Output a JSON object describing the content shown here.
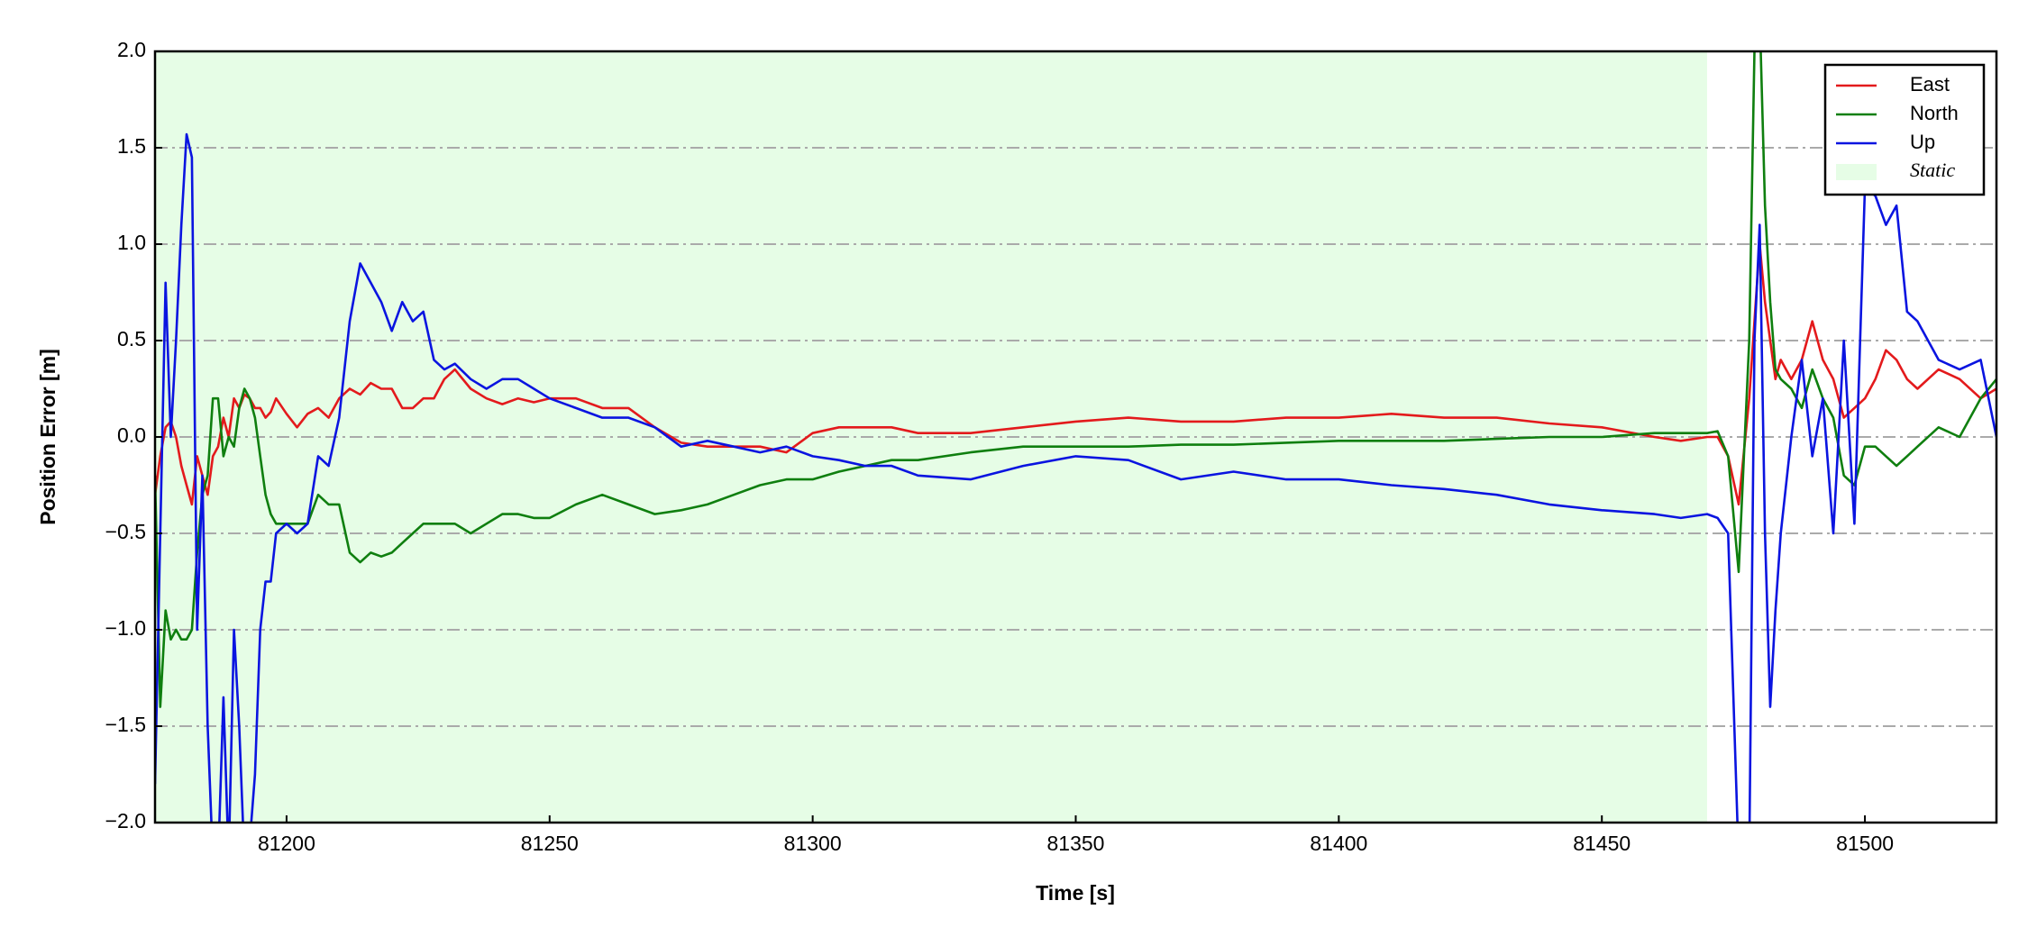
{
  "chart_data": {
    "type": "line",
    "xlabel": "Time [s]",
    "ylabel": "Position Error [m]",
    "xlim": [
      81175,
      81525
    ],
    "ylim": [
      -2.0,
      2.0
    ],
    "xticks": [
      81200,
      81250,
      81300,
      81350,
      81400,
      81450,
      81500
    ],
    "yticks": [
      {
        "value": -2.0,
        "label": "−2.0"
      },
      {
        "value": -1.5,
        "label": "−1.5"
      },
      {
        "value": -1.0,
        "label": "−1.0"
      },
      {
        "value": -0.5,
        "label": "−0.5"
      },
      {
        "value": 0.0,
        "label": "0.0"
      },
      {
        "value": 0.5,
        "label": "0.5"
      },
      {
        "value": 1.0,
        "label": "1.0"
      },
      {
        "value": 1.5,
        "label": "1.5"
      },
      {
        "value": 2.0,
        "label": "2.0"
      }
    ],
    "grid": true,
    "legend": "upper right",
    "static_span": {
      "name": "Static",
      "x": [
        81175,
        81470
      ],
      "color": "#e6fde6"
    },
    "x": [
      81175,
      81176,
      81177,
      81178,
      81179,
      81180,
      81181,
      81182,
      81183,
      81184,
      81185,
      81186,
      81187,
      81188,
      81189,
      81190,
      81191,
      81192,
      81193,
      81194,
      81195,
      81196,
      81197,
      81198,
      81200,
      81202,
      81204,
      81206,
      81208,
      81210,
      81212,
      81214,
      81216,
      81218,
      81220,
      81222,
      81224,
      81226,
      81228,
      81230,
      81232,
      81235,
      81238,
      81241,
      81244,
      81247,
      81250,
      81255,
      81260,
      81265,
      81270,
      81275,
      81280,
      81285,
      81290,
      81295,
      81300,
      81305,
      81310,
      81315,
      81320,
      81330,
      81340,
      81350,
      81360,
      81370,
      81380,
      81390,
      81400,
      81410,
      81420,
      81430,
      81440,
      81450,
      81460,
      81465,
      81470,
      81472,
      81474,
      81476,
      81478,
      81479,
      81480,
      81481,
      81482,
      81483,
      81484,
      81486,
      81488,
      81490,
      81492,
      81494,
      81496,
      81498,
      81500,
      81502,
      81504,
      81506,
      81508,
      81510,
      81514,
      81518,
      81522,
      81525
    ],
    "series": [
      {
        "name": "East",
        "color": "#e31a1c",
        "values": [
          -0.3,
          -0.1,
          0.05,
          0.08,
          0.0,
          -0.15,
          -0.25,
          -0.35,
          -0.1,
          -0.2,
          -0.3,
          -0.1,
          -0.05,
          0.1,
          0.0,
          0.2,
          0.15,
          0.22,
          0.2,
          0.15,
          0.15,
          0.1,
          0.13,
          0.2,
          0.12,
          0.05,
          0.12,
          0.15,
          0.1,
          0.2,
          0.25,
          0.22,
          0.28,
          0.25,
          0.25,
          0.15,
          0.15,
          0.2,
          0.2,
          0.3,
          0.35,
          0.25,
          0.2,
          0.17,
          0.2,
          0.18,
          0.2,
          0.2,
          0.15,
          0.15,
          0.05,
          -0.03,
          -0.05,
          -0.05,
          -0.05,
          -0.08,
          0.02,
          0.05,
          0.05,
          0.05,
          0.02,
          0.02,
          0.05,
          0.08,
          0.1,
          0.08,
          0.08,
          0.1,
          0.1,
          0.12,
          0.1,
          0.1,
          0.07,
          0.05,
          0.0,
          -0.02,
          0.0,
          0.0,
          -0.1,
          -0.35,
          0.2,
          0.6,
          1.0,
          0.7,
          0.5,
          0.3,
          0.4,
          0.3,
          0.4,
          0.6,
          0.4,
          0.3,
          0.1,
          0.15,
          0.2,
          0.3,
          0.45,
          0.4,
          0.3,
          0.25,
          0.35,
          0.3,
          0.2,
          0.25
        ]
      },
      {
        "name": "North",
        "color": "#0f7f0f",
        "values": [
          -0.2,
          -1.4,
          -0.9,
          -1.05,
          -1.0,
          -1.05,
          -1.05,
          -1.0,
          -0.6,
          -0.3,
          -0.2,
          0.2,
          0.2,
          -0.1,
          0.0,
          -0.05,
          0.15,
          0.25,
          0.2,
          0.1,
          -0.1,
          -0.3,
          -0.4,
          -0.45,
          -0.45,
          -0.45,
          -0.45,
          -0.3,
          -0.35,
          -0.35,
          -0.6,
          -0.65,
          -0.6,
          -0.62,
          -0.6,
          -0.55,
          -0.5,
          -0.45,
          -0.45,
          -0.45,
          -0.45,
          -0.5,
          -0.45,
          -0.4,
          -0.4,
          -0.42,
          -0.42,
          -0.35,
          -0.3,
          -0.35,
          -0.4,
          -0.38,
          -0.35,
          -0.3,
          -0.25,
          -0.22,
          -0.22,
          -0.18,
          -0.15,
          -0.12,
          -0.12,
          -0.08,
          -0.05,
          -0.05,
          -0.05,
          -0.04,
          -0.04,
          -0.03,
          -0.02,
          -0.02,
          -0.02,
          -0.01,
          0.0,
          0.0,
          0.02,
          0.02,
          0.02,
          0.03,
          -0.1,
          -0.7,
          0.5,
          2.0,
          2.2,
          1.2,
          0.7,
          0.35,
          0.3,
          0.25,
          0.15,
          0.35,
          0.2,
          0.1,
          -0.2,
          -0.25,
          -0.05,
          -0.05,
          -0.1,
          -0.15,
          -0.1,
          -0.05,
          0.05,
          0.0,
          0.2,
          0.3
        ]
      },
      {
        "name": "Up",
        "color": "#0a14e0",
        "values": [
          -1.8,
          -0.5,
          0.8,
          0.0,
          0.5,
          1.1,
          1.57,
          1.45,
          -1.0,
          -0.2,
          -1.5,
          -2.2,
          -2.2,
          -1.35,
          -2.2,
          -1.0,
          -1.5,
          -2.2,
          -2.1,
          -1.75,
          -1.0,
          -0.75,
          -0.75,
          -0.5,
          -0.45,
          -0.5,
          -0.45,
          -0.1,
          -0.15,
          0.1,
          0.6,
          0.9,
          0.8,
          0.7,
          0.55,
          0.7,
          0.6,
          0.65,
          0.4,
          0.35,
          0.38,
          0.3,
          0.25,
          0.3,
          0.3,
          0.25,
          0.2,
          0.15,
          0.1,
          0.1,
          0.05,
          -0.05,
          -0.02,
          -0.05,
          -0.08,
          -0.05,
          -0.1,
          -0.12,
          -0.15,
          -0.15,
          -0.2,
          -0.22,
          -0.15,
          -0.1,
          -0.12,
          -0.22,
          -0.18,
          -0.22,
          -0.22,
          -0.25,
          -0.27,
          -0.3,
          -0.35,
          -0.38,
          -0.4,
          -0.42,
          -0.4,
          -0.42,
          -0.5,
          -2.2,
          -2.2,
          0.5,
          1.1,
          -0.5,
          -1.4,
          -0.9,
          -0.5,
          0.0,
          0.4,
          -0.1,
          0.2,
          -0.5,
          0.5,
          -0.45,
          1.3,
          1.25,
          1.1,
          1.2,
          0.65,
          0.6,
          0.4,
          0.35,
          0.4,
          0.0
        ]
      }
    ]
  }
}
